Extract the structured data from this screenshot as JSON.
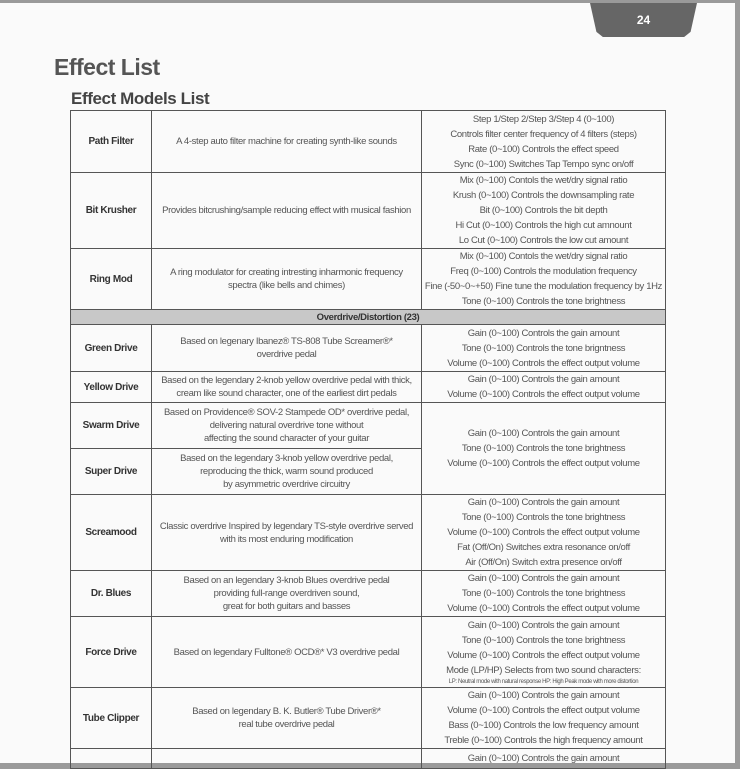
{
  "page_number": "24",
  "title": "Effect List",
  "subtitle": "Effect Models List",
  "rows": [
    {
      "name": "Path Filter",
      "desc": [
        "A 4-step auto filter machine for creating synth-like sounds"
      ],
      "params": [
        "Step 1/Step 2/Step 3/Step 4 (0~100)",
        "Controls filter center frequency of 4 filters (steps)",
        "Rate (0~100) Controls the effect speed",
        "Sync (0~100) Switches Tap Tempo sync on/off"
      ]
    },
    {
      "name": "Bit Krusher",
      "desc": [
        "Provides bitcrushing/sample reducing effect with musical fashion"
      ],
      "params": [
        "Mix (0~100) Contols the wet/dry signal ratio",
        "Krush (0~100) Controls the downsampling rate",
        "Bit (0~100) Controls the bit depth",
        "Hi Cut (0~100) Controls the high cut amnount",
        "Lo Cut (0~100) Controls the low cut amount"
      ]
    },
    {
      "name": "Ring Mod",
      "desc": [
        "A ring modulator for creating intresting inharmonic frequency",
        "spectra (like bells and chimes)"
      ],
      "params": [
        "Mix (0~100) Contols the wet/dry signal ratio",
        "Freq (0~100) Controls the modulation frequency",
        "Fine (-50~0~+50) Fine tune the modulation frequency by 1Hz",
        "Tone (0~100) Controls the tone brightness"
      ]
    },
    {
      "category": "Overdrive/Distortion (23)"
    },
    {
      "name": "Green Drive",
      "desc": [
        "Based on legenary Ibanez® TS-808 Tube Screamer®*",
        "overdrive pedal"
      ],
      "params": [
        "Gain (0~100) Controls the gain amount",
        "Tone (0~100) Controls the tone brigntness",
        "Volume (0~100) Controls the effect output volume"
      ]
    },
    {
      "name": "Yellow Drive",
      "desc": [
        "Based on the legendary 2-knob yellow overdrive pedal with thick,",
        "cream like sound character, one of the earliest dirt pedals"
      ],
      "params": [
        "Gain (0~100) Controls the gain amount",
        "Volume (0~100) Controls the effect output volume"
      ]
    },
    {
      "name": "Swarm Drive",
      "desc": [
        "Based on Providence® SOV-2 Stampede OD* overdrive pedal,",
        "delivering natural overdrive tone without",
        "affecting the sound character of your guitar"
      ],
      "params": [
        "Gain (0~100) Controls the gain amount",
        "Tone (0~100) Controls the tone brightness",
        "Volume (0~100) Controls the effect output volume"
      ],
      "span": 2
    },
    {
      "name": "Super Drive",
      "desc": [
        "Based on the legendary 3-knob yellow overdrive pedal,",
        "reproducing the thick, warm sound produced",
        "by asymmetric overdrive circuitry"
      ]
    },
    {
      "name": "Screamood",
      "desc": [
        "Classic overdrive Inspired by legendary TS-style overdrive served",
        "with its most enduring modification"
      ],
      "params": [
        "Gain (0~100) Controls the gain amount",
        "Tone (0~100) Controls the tone brightness",
        "Volume (0~100) Controls the effect output volume",
        "Fat (Off/On) Switches extra resonance on/off",
        "Air (Off/On) Switch extra presence on/off"
      ]
    },
    {
      "name": "Dr. Blues",
      "desc": [
        "Based on an legendary 3-knob Blues overdrive pedal",
        "providing full-range overdriven sound,",
        "great for both guitars and basses"
      ],
      "params": [
        "Gain (0~100) Controls the gain amount",
        "Tone (0~100) Controls the tone brightness",
        "Volume (0~100) Controls the effect output volume"
      ]
    },
    {
      "name": "Force Drive",
      "desc": [
        "Based on legendary Fulltone® OCD®* V3 overdrive pedal"
      ],
      "params": [
        "Gain (0~100) Controls the gain amount",
        "Tone (0~100) Controls the tone brightness",
        "Volume (0~100) Controls the effect output volume",
        "Mode (LP/HP) Selects from two sound characters:"
      ],
      "note": "LP: Neutral mode with natural response  HP: High Peak mode with more distortion"
    },
    {
      "name": "Tube Clipper",
      "desc": [
        "Based on legendary B. K. Butler® Tube Driver®*",
        "real tube overdrive pedal"
      ],
      "params": [
        "Gain (0~100) Controls the gain amount",
        "Volume (0~100) Controls the effect output volume",
        "Bass (0~100) Controls the low frequency amount",
        "Treble (0~100) Controls the high frequency amount"
      ]
    },
    {
      "name": "",
      "desc": [
        ""
      ],
      "params": [
        "Gain (0~100) Controls the gain amount"
      ]
    }
  ]
}
